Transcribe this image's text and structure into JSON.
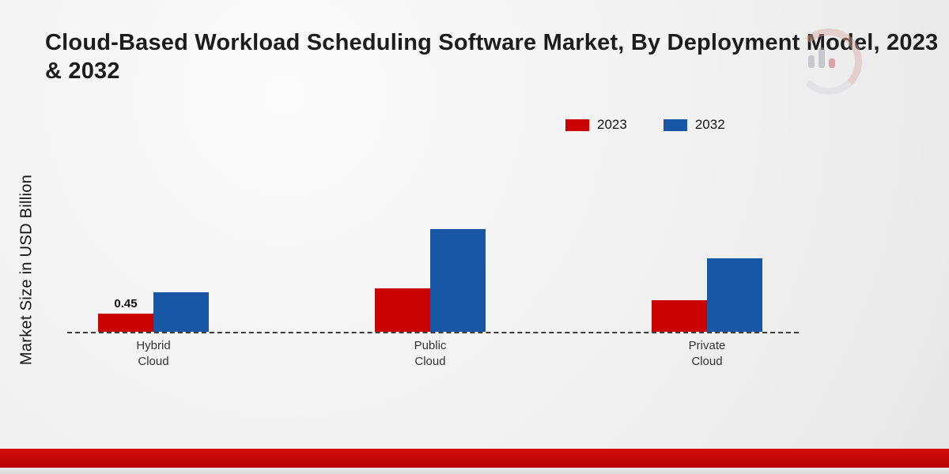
{
  "chart_data": {
    "type": "bar",
    "title": "Cloud-Based Workload Scheduling Software Market, By Deployment Model, 2023 & 2032",
    "title_lines": [
      "Cloud-Based Workload Scheduling Software Market, By Deployment Model, 2023",
      "& 2032"
    ],
    "ylabel": "Market Size in USD Billion",
    "xlabel": "",
    "categories": [
      "Hybrid Cloud",
      "Public Cloud",
      "Private Cloud"
    ],
    "series": [
      {
        "name": "2023",
        "color": "#cc0303",
        "values": [
          0.45,
          1.1,
          0.8
        ]
      },
      {
        "name": "2032",
        "color": "#1757a6",
        "values": [
          1.0,
          2.6,
          1.85
        ]
      }
    ],
    "data_labels": [
      {
        "series_index": 0,
        "category_index": 0,
        "text": "0.45"
      }
    ],
    "ylim": [
      0,
      3
    ],
    "grid": false,
    "legend_position": "top-right",
    "baseline_style": "dashed"
  }
}
